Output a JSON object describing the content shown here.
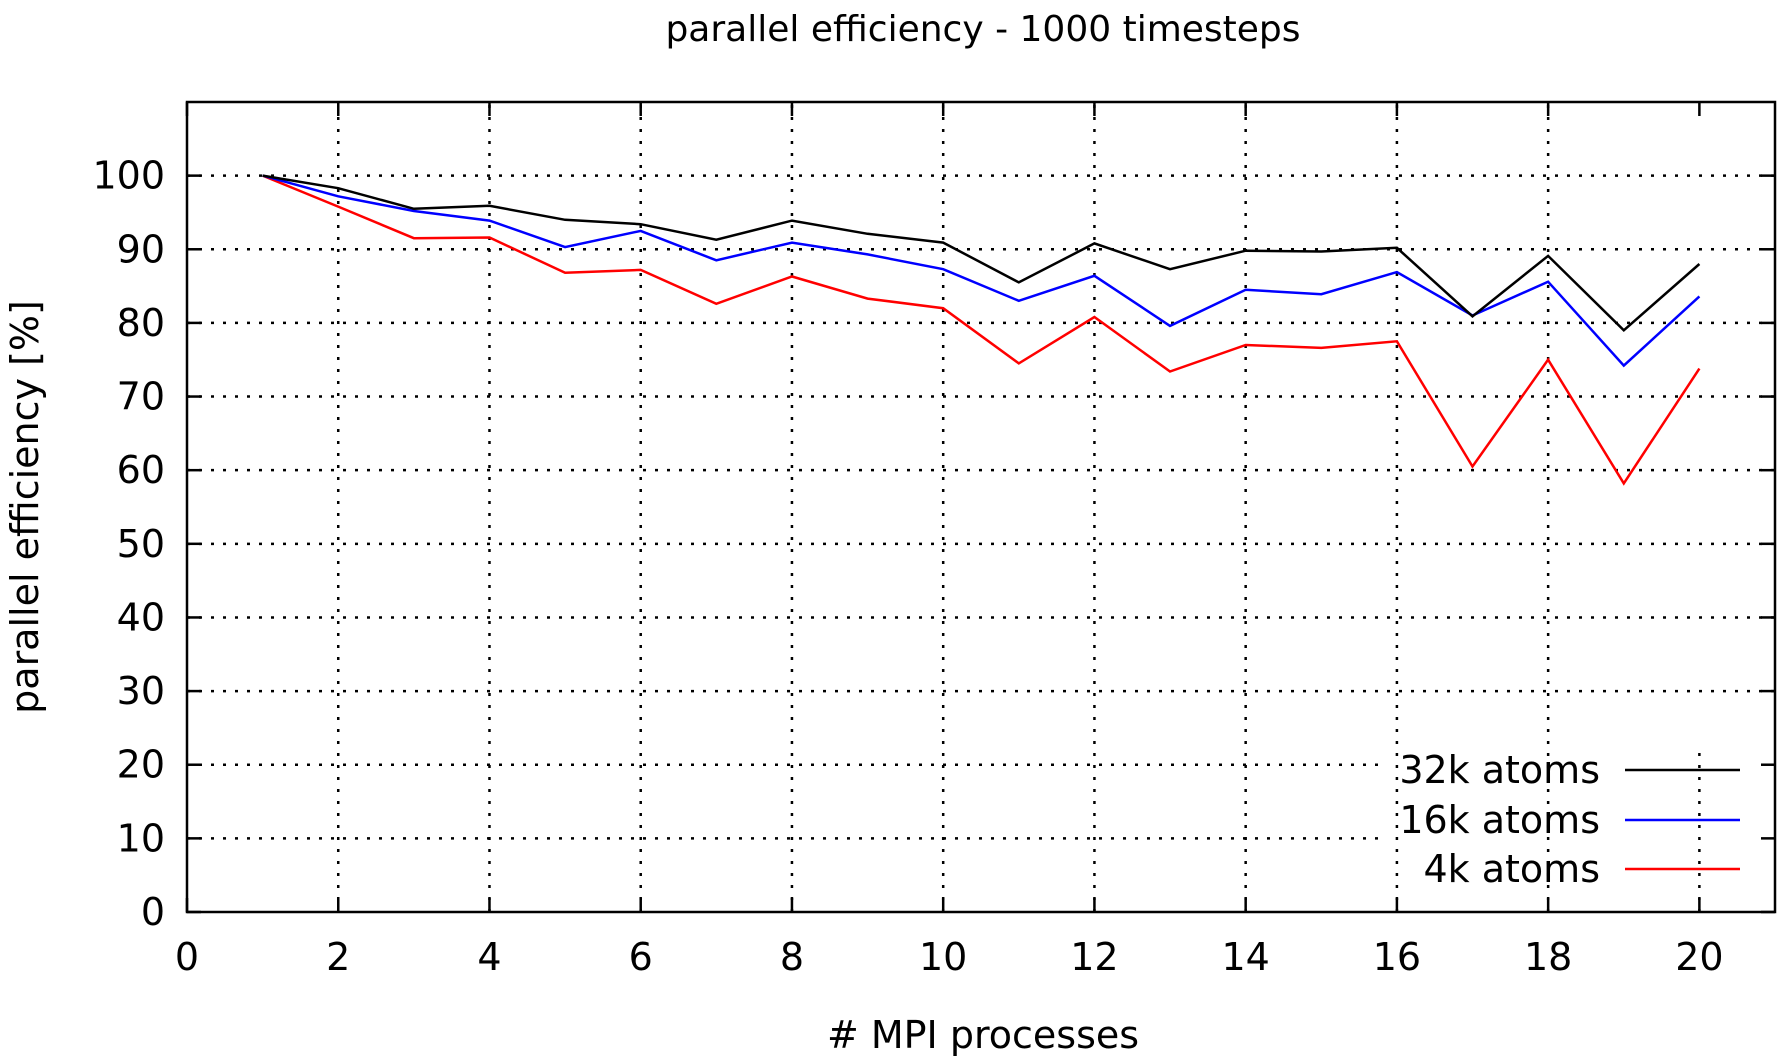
{
  "chart_data": {
    "type": "line",
    "title": "parallel efficiency - 1000 timesteps",
    "xlabel": "# MPI processes",
    "ylabel": "parallel efficiency [%]",
    "xlim": [
      0,
      21
    ],
    "ylim": [
      0,
      110
    ],
    "xticks": [
      0,
      2,
      4,
      6,
      8,
      10,
      12,
      14,
      16,
      18,
      20
    ],
    "yticks": [
      0,
      10,
      20,
      30,
      40,
      50,
      60,
      70,
      80,
      90,
      100
    ],
    "grid": true,
    "legend_position": "bottom-right",
    "x": [
      1,
      2,
      3,
      4,
      5,
      6,
      7,
      8,
      9,
      10,
      11,
      12,
      13,
      14,
      15,
      16,
      17,
      18,
      19,
      20
    ],
    "series": [
      {
        "name": "32k atoms",
        "color": "#000000",
        "values": [
          100,
          98.3,
          95.5,
          95.9,
          94.0,
          93.4,
          91.3,
          93.9,
          92.1,
          90.9,
          85.5,
          90.8,
          87.3,
          89.8,
          89.7,
          90.2,
          80.9,
          89.1,
          79.0,
          88.0
        ]
      },
      {
        "name": "16k atoms",
        "color": "#0000ff",
        "values": [
          100,
          97.2,
          95.2,
          93.9,
          90.3,
          92.5,
          88.5,
          90.9,
          89.3,
          87.3,
          83.0,
          86.4,
          79.6,
          84.5,
          83.9,
          86.9,
          81.0,
          85.6,
          74.2,
          83.6
        ]
      },
      {
        "name": "4k atoms",
        "color": "#ff0000",
        "values": [
          100,
          95.8,
          91.5,
          91.6,
          86.8,
          87.2,
          82.6,
          86.3,
          83.3,
          82.0,
          74.5,
          80.8,
          73.4,
          77.0,
          76.6,
          77.5,
          60.5,
          75.0,
          58.2,
          73.8
        ]
      }
    ]
  }
}
